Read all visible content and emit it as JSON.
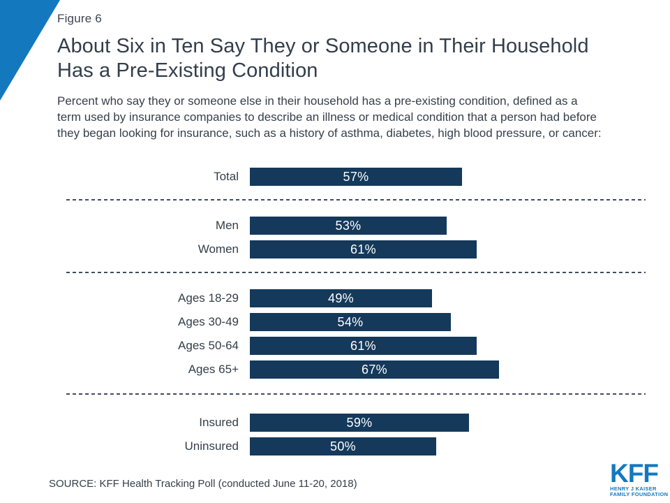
{
  "figure_label": "Figure 6",
  "title_lines": [
    "About Six in Ten Say They or Someone in Their Household",
    "Has a Pre-Existing Condition"
  ],
  "subtitle_lines": [
    "Percent who say they or someone else in their household has a pre-existing condition, defined as a",
    "term used by insurance companies to describe an illness or medical condition that a person had before",
    "they began looking for insurance, such as a history of asthma, diabetes, high blood pressure, or cancer:"
  ],
  "source": "SOURCE: KFF Health Tracking Poll (conducted June 11-20, 2018)",
  "logo": {
    "text": "KFF",
    "line1": "HENRY J KAISER",
    "line2": "FAMILY FOUNDATION"
  },
  "colors": {
    "kff_blue": "#1478BE",
    "bar_navy": "#14395B",
    "text_dark": "#333E48",
    "divider": "#414C5C"
  },
  "chart_data": {
    "type": "bar",
    "orientation": "horizontal",
    "unit": "percent",
    "value_range": [
      0,
      100
    ],
    "bar_color": "#14395B",
    "legend": "none",
    "grid": "off",
    "groups": [
      {
        "rows": [
          {
            "label": "Total",
            "value": 57,
            "display": "57%"
          }
        ]
      },
      {
        "rows": [
          {
            "label": "Men",
            "value": 53,
            "display": "53%"
          },
          {
            "label": "Women",
            "value": 61,
            "display": "61%"
          }
        ]
      },
      {
        "rows": [
          {
            "label": "Ages 18-29",
            "value": 49,
            "display": "49%"
          },
          {
            "label": "Ages 30-49",
            "value": 54,
            "display": "54%"
          },
          {
            "label": "Ages 50-64",
            "value": 61,
            "display": "61%"
          },
          {
            "label": "Ages 65+",
            "value": 67,
            "display": "67%"
          }
        ]
      },
      {
        "rows": [
          {
            "label": "Insured",
            "value": 59,
            "display": "59%"
          },
          {
            "label": "Uninsured",
            "value": 50,
            "display": "50%"
          }
        ]
      }
    ]
  }
}
